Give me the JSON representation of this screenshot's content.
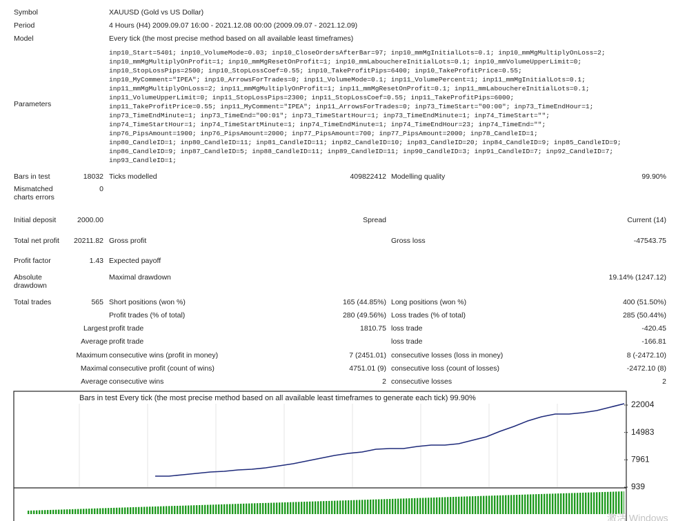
{
  "report": {
    "rows_top": [
      [
        "Symbol",
        "XAUUSD (Gold vs US Dollar)"
      ],
      [
        "Period",
        "4 Hours (H4) 2009.09.07 16:00 - 2021.12.08 00:00 (2009.09.07 - 2021.12.09)"
      ],
      [
        "Model",
        "Every tick (the most precise method based on all available least timeframes)"
      ]
    ],
    "parameters_label": "Parameters",
    "parameters": [
      "inp10_Start=5401; inp10_VolumeMode=0.03; inp10_CloseOrdersAfterBar=97; inp10_mmMgInitialLots=0.1; inp10_mmMgMultiplyOnLoss=2;",
      "inp10_mmMgMultiplyOnProfit=1; inp10_mmMgResetOnProfit=1; inp10_mmLabouchereInitialLots=0.1; inp10_mmVolumeUpperLimit=0;",
      "inp10_StopLossPips=2500; inp10_StopLossCoef=0.55; inp10_TakeProfitPips=6400; inp10_TakeProfitPrice=0.55;",
      "inp10_MyComment=\"IPEA\"; inp10_ArrowsForTrades=0; inp11_VolumeMode=0.1; inp11_VolumePercent=1; inp11_mmMgInitialLots=0.1;",
      "inp11_mmMgMultiplyOnLoss=2; inp11_mmMgMultiplyOnProfit=1; inp11_mmMgResetOnProfit=0.1; inp11_mmLabouchereInitialLots=0.1;",
      "inp11_VolumeUpperLimit=0; inp11_StopLossPips=2300; inp11_StopLossCoef=0.55; inp11_TakeProfitPips=6000;",
      "inp11_TakeProfitPrice=0.55; inp11_MyComment=\"IPEA\"; inp11_ArrowsForTrades=0; inp73_TimeStart=\"00:00\"; inp73_TimeEndHour=1;",
      "inp73_TimeEndMinute=1; inp73_TimeEnd=\"00:01\"; inp73_TimeStartHour=1; inp73_TimeEndMinute=1; inp74_TimeStart=\"\";",
      "inp74_TimeStartHour=1; inp74_TimeStartMinute=1; inp74_TimeEndMinute=1; inp74_TimeEndHour=23; inp74_TimeEnd=\"\";",
      "inp76_PipsAmount=1900; inp76_PipsAmount=2000; inp77_PipsAmount=700; inp77_PipsAmount=2000; inp78_CandleID=1;",
      "inp80_CandleID=1; inp80_CandleID=11; inp81_CandleID=11; inp82_CandleID=10; inp83_CandleID=20; inp84_CandleID=9; inp85_CandleID=9;",
      "inp86_CandleID=9; inp87_CandleID=5; inp88_CandleID=11; inp89_CandleID=11; inp90_CandleID=3; inp91_CandleID=7; inp92_CandleID=7;",
      "inp93_CandleID=1;"
    ],
    "rows": [
      [
        "Bars in test",
        "18032",
        "Ticks modelled",
        "409822412",
        "Modelling quality",
        "99.90%"
      ],
      [
        "Mismatched charts errors",
        "0",
        null,
        null,
        null,
        null
      ],
      [
        "Initial deposit",
        "2000.00",
        null,
        "Spread",
        null,
        "Current (14)"
      ],
      [
        "Total net profit",
        "20211.82",
        "Gross profit",
        "",
        "Gross loss",
        "-47543.75"
      ],
      [
        "Profit factor",
        "1.43",
        "Expected payoff",
        null,
        null,
        null
      ],
      [
        "Absolute drawdown",
        "",
        "Maximal drawdown",
        null,
        null,
        "19.14% (1247.12)"
      ],
      [
        "Total trades",
        "565",
        "Short positions (won %)",
        "165 (44.85%)",
        "Long positions (won %)",
        "400 (51.50%)"
      ],
      [
        null,
        null,
        "Profit trades (% of total)",
        "280 (49.56%)",
        "Loss trades (% of total)",
        "285 (50.44%)"
      ],
      [
        "Largest",
        null,
        "profit trade",
        "1810.75",
        "loss trade",
        "-420.45"
      ],
      [
        "Average",
        null,
        "profit trade",
        "",
        "loss trade",
        "-166.81"
      ],
      [
        "Maximum",
        null,
        "consecutive wins (profit in money)",
        "7 (2451.01)",
        "consecutive losses (loss in money)",
        "8 (-2472.10)"
      ],
      [
        "Maximal",
        null,
        "consecutive profit (count of wins)",
        "4751.01 (9)",
        "consecutive loss (count of losses)",
        "-2472.10 (8)"
      ],
      [
        "Average",
        null,
        "consecutive wins",
        "2",
        "consecutive losses",
        "2"
      ]
    ],
    "graph": {
      "caption": "Bars in test   Every tick (the most precise method based on all available least timeframes to generate each tick)   99.90%",
      "ylim": [
        939,
        24657
      ],
      "yticks": [
        22004,
        14983,
        7961,
        939
      ],
      "values": [
        3771,
        3771,
        4125,
        4479,
        4833,
        5010,
        5364,
        5541,
        5895,
        6426,
        6957,
        7665,
        8373,
        9081,
        9612,
        9966,
        10674,
        10851,
        10851,
        11382,
        11736,
        11736,
        12090,
        12975,
        13860,
        15276,
        16515,
        17931,
        18993,
        19701,
        19701,
        20055,
        20586,
        21471,
        22356
      ]
    },
    "watermark": "激活 Windows"
  }
}
